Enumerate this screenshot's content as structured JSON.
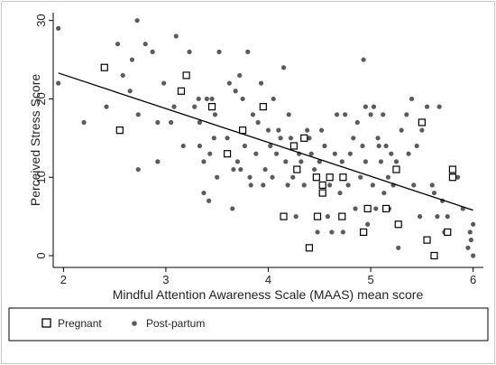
{
  "chart_data": {
    "type": "scatter",
    "title": "",
    "xlabel": "Mindful Attention Awareness Scale (MAAS) mean score",
    "ylabel": "Perceived Stress Score",
    "xlim": [
      1.9,
      6.1
    ],
    "ylim": [
      -1.5,
      31
    ],
    "xticks": [
      "2",
      "3",
      "4",
      "5",
      "6"
    ],
    "yticks": [
      "0",
      "10",
      "20",
      "30"
    ],
    "grid": false,
    "legend_position": "bottom",
    "series": [
      {
        "name": "Pregnant",
        "marker": "open-square",
        "points": [
          [
            2.4,
            24
          ],
          [
            2.55,
            16
          ],
          [
            3.15,
            21
          ],
          [
            3.2,
            23
          ],
          [
            3.45,
            19
          ],
          [
            3.6,
            13
          ],
          [
            3.75,
            16
          ],
          [
            3.95,
            19
          ],
          [
            4.15,
            5
          ],
          [
            4.25,
            14
          ],
          [
            4.28,
            11
          ],
          [
            4.35,
            15
          ],
          [
            4.4,
            1
          ],
          [
            4.47,
            10
          ],
          [
            4.48,
            5
          ],
          [
            4.53,
            9
          ],
          [
            4.53,
            8
          ],
          [
            4.6,
            10
          ],
          [
            4.72,
            5
          ],
          [
            4.73,
            10
          ],
          [
            4.93,
            3
          ],
          [
            4.97,
            6
          ],
          [
            5.15,
            6
          ],
          [
            5.25,
            11
          ],
          [
            5.27,
            4
          ],
          [
            5.5,
            17
          ],
          [
            5.55,
            2
          ],
          [
            5.62,
            0
          ],
          [
            5.75,
            3
          ],
          [
            5.8,
            11
          ],
          [
            5.8,
            10
          ]
        ]
      },
      {
        "name": "Post-partum",
        "marker": "filled-circle",
        "points": [
          [
            1.95,
            29
          ],
          [
            1.95,
            22
          ],
          [
            2.2,
            17
          ],
          [
            2.42,
            19
          ],
          [
            2.53,
            27
          ],
          [
            2.58,
            23
          ],
          [
            2.65,
            21
          ],
          [
            2.67,
            25
          ],
          [
            2.72,
            30
          ],
          [
            2.73,
            18
          ],
          [
            2.73,
            11
          ],
          [
            2.8,
            27
          ],
          [
            2.87,
            26
          ],
          [
            2.92,
            12
          ],
          [
            2.92,
            17
          ],
          [
            2.98,
            22
          ],
          [
            3.05,
            17
          ],
          [
            3.08,
            19
          ],
          [
            3.1,
            28
          ],
          [
            3.17,
            14
          ],
          [
            3.23,
            26
          ],
          [
            3.28,
            19
          ],
          [
            3.32,
            20
          ],
          [
            3.33,
            17
          ],
          [
            3.33,
            14
          ],
          [
            3.37,
            8
          ],
          [
            3.37,
            12
          ],
          [
            3.4,
            20
          ],
          [
            3.42,
            7
          ],
          [
            3.43,
            13
          ],
          [
            3.45,
            20
          ],
          [
            3.47,
            15
          ],
          [
            3.48,
            18
          ],
          [
            3.5,
            10
          ],
          [
            3.52,
            26
          ],
          [
            3.6,
            15
          ],
          [
            3.62,
            22
          ],
          [
            3.65,
            6
          ],
          [
            3.66,
            11
          ],
          [
            3.68,
            21
          ],
          [
            3.7,
            12
          ],
          [
            3.72,
            23
          ],
          [
            3.73,
            11
          ],
          [
            3.75,
            20
          ],
          [
            3.77,
            14
          ],
          [
            3.8,
            26
          ],
          [
            3.82,
            10
          ],
          [
            3.83,
            9
          ],
          [
            3.85,
            18
          ],
          [
            3.88,
            13
          ],
          [
            3.9,
            17
          ],
          [
            3.93,
            22
          ],
          [
            3.95,
            9
          ],
          [
            3.97,
            11
          ],
          [
            4.0,
            16
          ],
          [
            4.02,
            14
          ],
          [
            4.04,
            10
          ],
          [
            4.05,
            20
          ],
          [
            4.08,
            13
          ],
          [
            4.1,
            16
          ],
          [
            4.12,
            15
          ],
          [
            4.15,
            24
          ],
          [
            4.17,
            12
          ],
          [
            4.19,
            9
          ],
          [
            4.2,
            18
          ],
          [
            4.22,
            15
          ],
          [
            4.24,
            10
          ],
          [
            4.27,
            5
          ],
          [
            4.3,
            13
          ],
          [
            4.32,
            12
          ],
          [
            4.35,
            9
          ],
          [
            4.38,
            16
          ],
          [
            4.4,
            15
          ],
          [
            4.42,
            13
          ],
          [
            4.45,
            11
          ],
          [
            4.48,
            3
          ],
          [
            4.5,
            12
          ],
          [
            4.52,
            16
          ],
          [
            4.55,
            14
          ],
          [
            4.58,
            5
          ],
          [
            4.6,
            9
          ],
          [
            4.62,
            3
          ],
          [
            4.65,
            13
          ],
          [
            4.67,
            18
          ],
          [
            4.7,
            8
          ],
          [
            4.72,
            12
          ],
          [
            4.73,
            3
          ],
          [
            4.75,
            18
          ],
          [
            4.78,
            9
          ],
          [
            4.8,
            13
          ],
          [
            4.83,
            15
          ],
          [
            4.85,
            6
          ],
          [
            4.87,
            17
          ],
          [
            4.9,
            10
          ],
          [
            4.92,
            14
          ],
          [
            4.93,
            25
          ],
          [
            4.95,
            19
          ],
          [
            4.95,
            12
          ],
          [
            4.97,
            4
          ],
          [
            5.0,
            18
          ],
          [
            5.02,
            9
          ],
          [
            5.03,
            19
          ],
          [
            5.05,
            6
          ],
          [
            5.07,
            15
          ],
          [
            5.08,
            14
          ],
          [
            5.1,
            12
          ],
          [
            5.12,
            18
          ],
          [
            5.13,
            8
          ],
          [
            5.15,
            14
          ],
          [
            5.17,
            10
          ],
          [
            5.18,
            6
          ],
          [
            5.2,
            13
          ],
          [
            5.22,
            9
          ],
          [
            5.25,
            12
          ],
          [
            5.27,
            1
          ],
          [
            5.3,
            16
          ],
          [
            5.35,
            18
          ],
          [
            5.37,
            13
          ],
          [
            5.4,
            20
          ],
          [
            5.42,
            9
          ],
          [
            5.45,
            14
          ],
          [
            5.48,
            5
          ],
          [
            5.5,
            16
          ],
          [
            5.55,
            19
          ],
          [
            5.6,
            9
          ],
          [
            5.62,
            8
          ],
          [
            5.65,
            5
          ],
          [
            5.67,
            19
          ],
          [
            5.7,
            7
          ],
          [
            5.72,
            3
          ],
          [
            5.75,
            5
          ],
          [
            5.85,
            10
          ],
          [
            5.9,
            6
          ],
          [
            5.95,
            1
          ],
          [
            5.97,
            3
          ],
          [
            5.98,
            2
          ],
          [
            6.0,
            4
          ],
          [
            6.0,
            0
          ]
        ]
      }
    ],
    "fit_line": {
      "x": [
        1.95,
        6.0
      ],
      "y": [
        23.3,
        5.8
      ]
    },
    "colors": {
      "pregnant_stroke": "#000000",
      "post_partum_fill": "#5b5b5b",
      "overlap_fill": "#7a7a7a",
      "fit_line": "#000000",
      "axis": "#000000",
      "frame": "#c8c8c8"
    }
  }
}
